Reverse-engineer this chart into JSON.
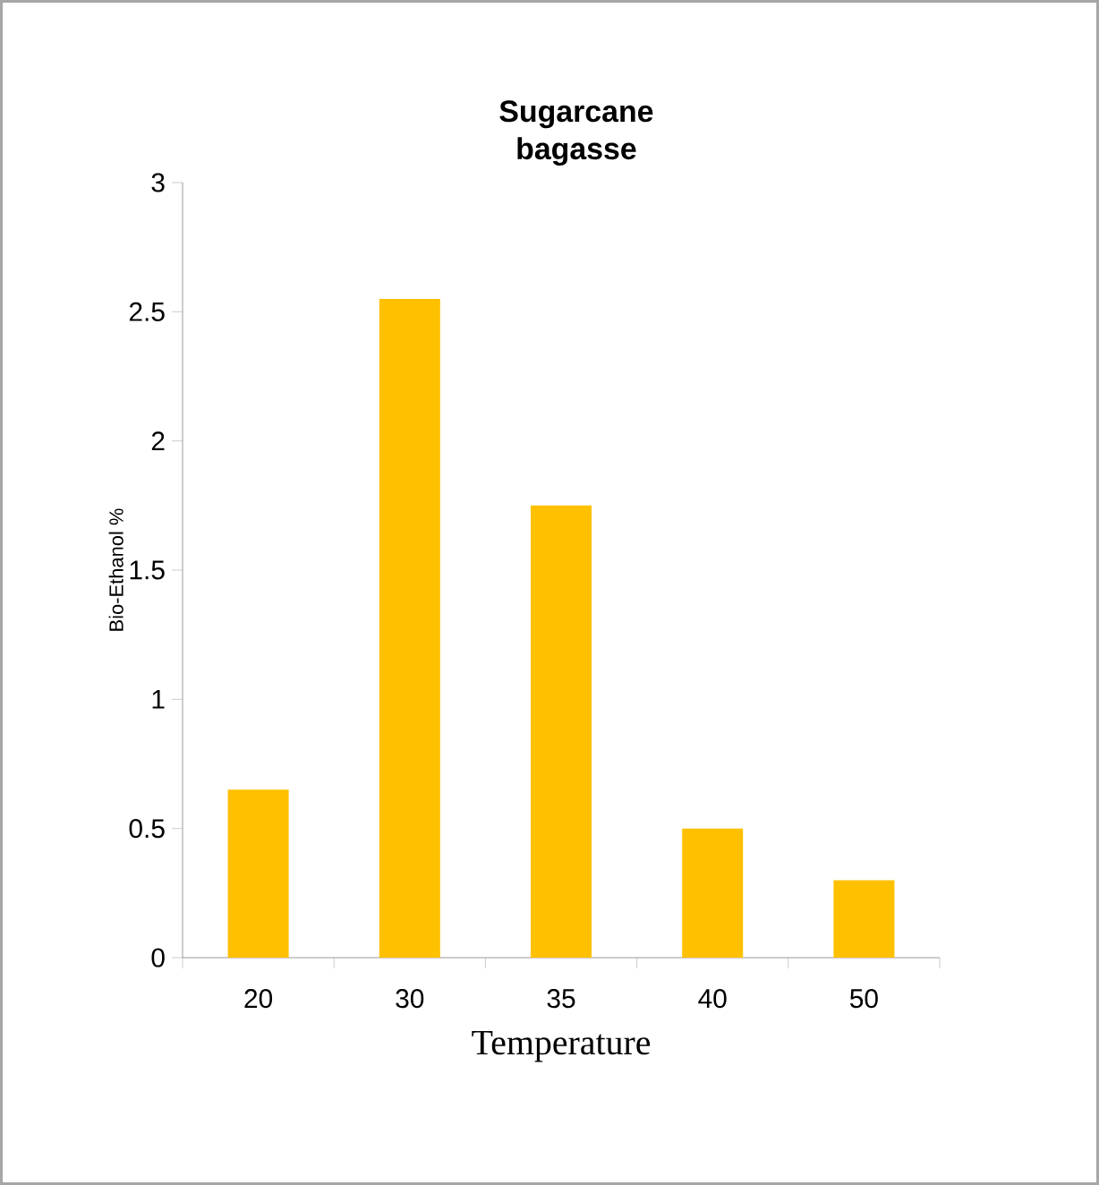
{
  "chart_data": {
    "type": "bar",
    "title": "Sugarcane bagasse",
    "xlabel": "Temperature",
    "ylabel": "Bio-Ethanol %",
    "categories": [
      "20",
      "30",
      "35",
      "40",
      "50"
    ],
    "values": [
      0.65,
      2.55,
      1.75,
      0.5,
      0.3
    ],
    "color": "#ffc000",
    "ylim": [
      0,
      3
    ],
    "yticks": [
      0,
      0.5,
      1,
      1.5,
      2,
      2.5,
      3
    ]
  }
}
